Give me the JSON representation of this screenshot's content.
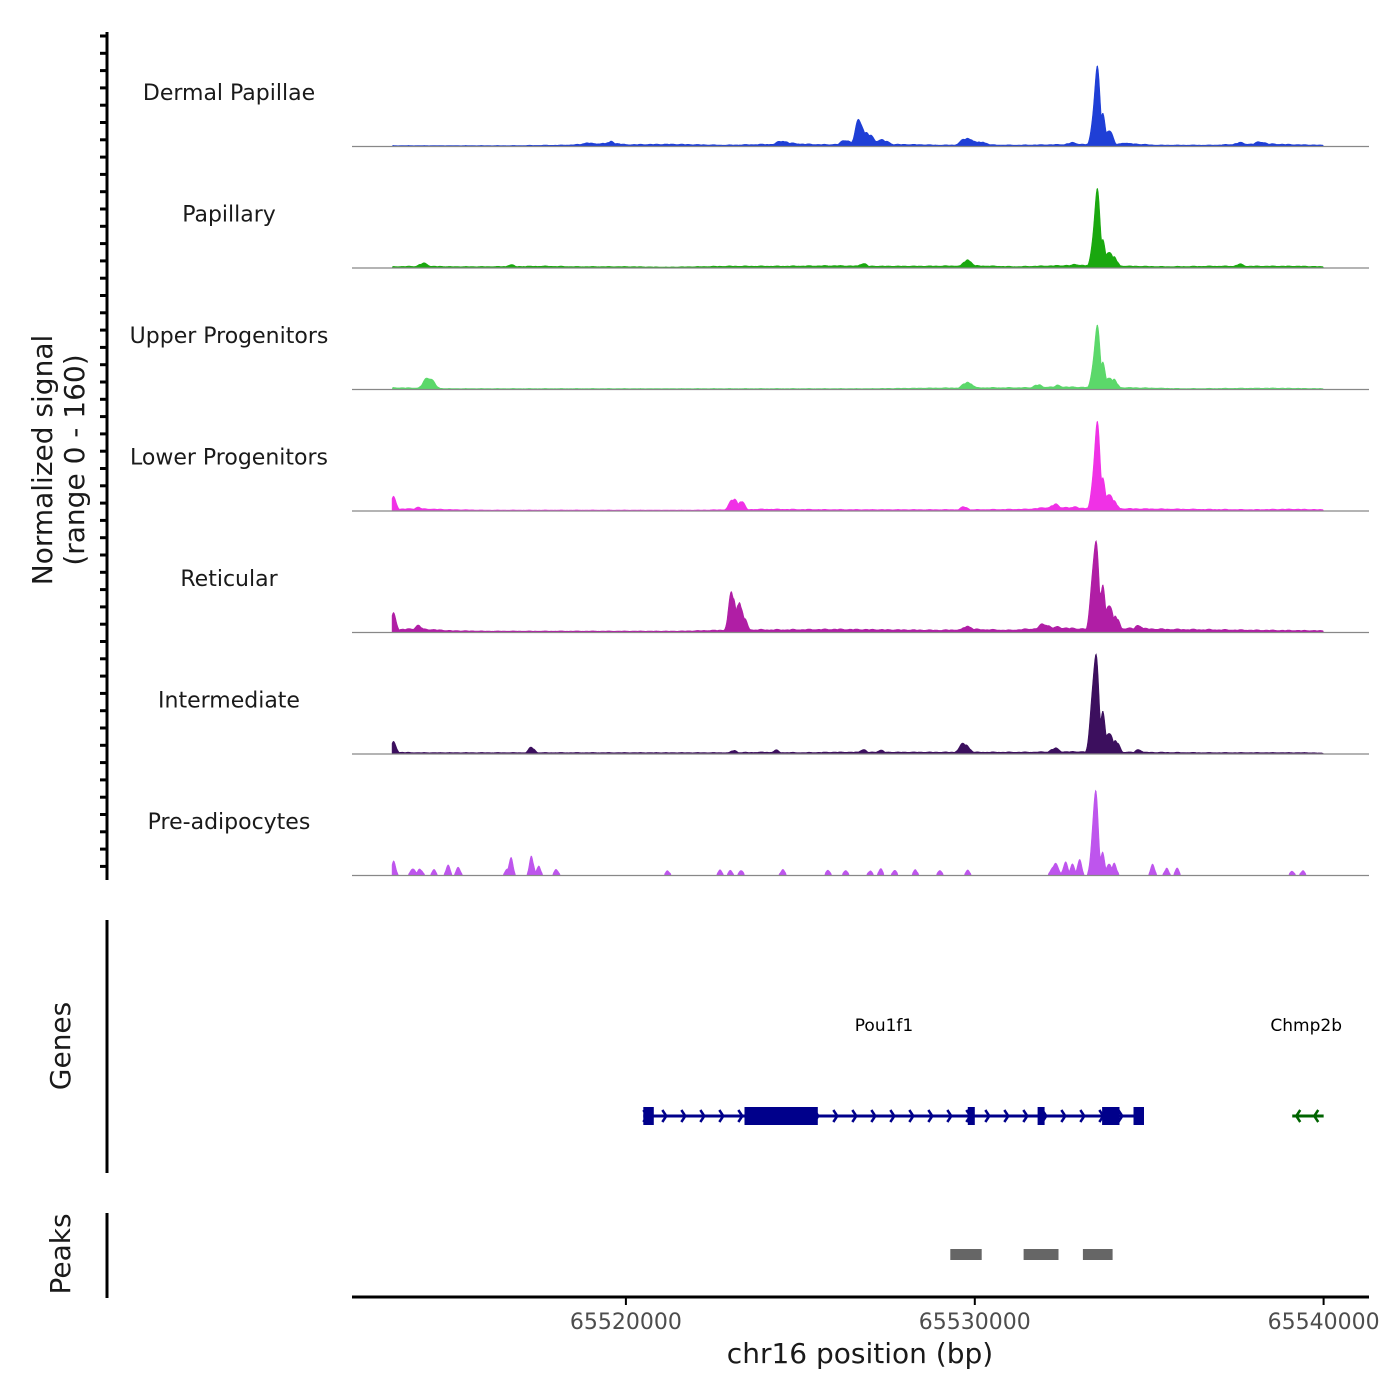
{
  "chart_data": {
    "type": "area",
    "title": "",
    "xlabel": "chr16 position (bp)",
    "ylabel": "Normalized signal",
    "ylabel_sub": "(range 0 - 160)",
    "ylim": [
      0,
      160
    ],
    "xlim": [
      65512150,
      65541300
    ],
    "x_ticks": [
      65520000,
      65530000,
      65540000
    ],
    "x_tick_labels": [
      "65520000",
      "65530000",
      "65540000"
    ],
    "tracks": [
      {
        "name": "Dermal Papillae",
        "color": "#1f3fd6",
        "baseline": [
          [
            65513300,
            2
          ],
          [
            65514100,
            2
          ],
          [
            65515000,
            2
          ],
          [
            65515600,
            2
          ],
          [
            65516700,
            2
          ],
          [
            65518200,
            3
          ],
          [
            65518900,
            5
          ],
          [
            65519600,
            8
          ],
          [
            65520000,
            4
          ],
          [
            65521300,
            5
          ],
          [
            65522800,
            3
          ],
          [
            65523500,
            4
          ],
          [
            65524200,
            5
          ],
          [
            65524500,
            8
          ],
          [
            65525200,
            5
          ],
          [
            65525800,
            4
          ],
          [
            65526300,
            6
          ],
          [
            65527200,
            5
          ],
          [
            65528500,
            4
          ],
          [
            65529000,
            3
          ],
          [
            65530000,
            4
          ],
          [
            65531200,
            3
          ],
          [
            65532200,
            4
          ],
          [
            65534500,
            6
          ],
          [
            65535200,
            3
          ],
          [
            65536800,
            3
          ],
          [
            65537600,
            5
          ],
          [
            65538200,
            6
          ],
          [
            65539200,
            4
          ],
          [
            65540000,
            3
          ]
        ],
        "peaks": [
          [
            65518900,
            200,
            8
          ],
          [
            65519600,
            80,
            12
          ],
          [
            65524500,
            200,
            12
          ],
          [
            65526300,
            150,
            14
          ],
          [
            65526700,
            120,
            58
          ],
          [
            65526900,
            200,
            28
          ],
          [
            65527300,
            250,
            14
          ],
          [
            65529800,
            200,
            18
          ],
          [
            65530200,
            180,
            10
          ],
          [
            65532800,
            200,
            8
          ],
          [
            65533500,
            100,
            160
          ],
          [
            65533650,
            90,
            70
          ],
          [
            65533850,
            100,
            38
          ],
          [
            65534300,
            150,
            8
          ],
          [
            65537600,
            200,
            8
          ],
          [
            65538200,
            200,
            10
          ]
        ]
      },
      {
        "name": "Papillary",
        "color": "#1aa80f",
        "baseline": [
          [
            65513300,
            3
          ],
          [
            65514200,
            4
          ],
          [
            65515000,
            3
          ],
          [
            65516000,
            3
          ],
          [
            65517700,
            4
          ],
          [
            65518500,
            3
          ],
          [
            65520000,
            3
          ],
          [
            65521200,
            2
          ],
          [
            65523000,
            4
          ],
          [
            65524500,
            4
          ],
          [
            65526000,
            5
          ],
          [
            65527000,
            4
          ],
          [
            65528500,
            4
          ],
          [
            65530000,
            5
          ],
          [
            65531200,
            3
          ],
          [
            65532300,
            5
          ],
          [
            65532900,
            6
          ],
          [
            65534500,
            4
          ],
          [
            65535500,
            3
          ],
          [
            65536800,
            4
          ],
          [
            65538200,
            4
          ],
          [
            65539300,
            4
          ],
          [
            65540000,
            3
          ]
        ],
        "peaks": [
          [
            65514200,
            150,
            10
          ],
          [
            65516700,
            120,
            7
          ],
          [
            65526800,
            120,
            10
          ],
          [
            65529800,
            130,
            18
          ],
          [
            65532900,
            150,
            8
          ],
          [
            65533500,
            100,
            158
          ],
          [
            65533650,
            90,
            60
          ],
          [
            65533850,
            100,
            38
          ],
          [
            65534000,
            100,
            22
          ],
          [
            65537600,
            150,
            8
          ]
        ]
      },
      {
        "name": "Upper Progenitors",
        "color": "#5bd86a",
        "baseline": [
          [
            65513300,
            4
          ],
          [
            65514200,
            3
          ],
          [
            65515000,
            2
          ],
          [
            65516000,
            2
          ],
          [
            65518000,
            2
          ],
          [
            65520000,
            2
          ],
          [
            65523000,
            2
          ],
          [
            65525000,
            2
          ],
          [
            65527000,
            2
          ],
          [
            65528500,
            3
          ],
          [
            65530000,
            4
          ],
          [
            65531500,
            4
          ],
          [
            65532300,
            6
          ],
          [
            65533000,
            5
          ],
          [
            65534500,
            4
          ],
          [
            65536000,
            2
          ],
          [
            65538500,
            3
          ],
          [
            65540000,
            2
          ]
        ],
        "peaks": [
          [
            65514350,
            150,
            26
          ],
          [
            65529800,
            150,
            16
          ],
          [
            65531800,
            150,
            10
          ],
          [
            65532400,
            120,
            9
          ],
          [
            65533500,
            100,
            128
          ],
          [
            65533650,
            90,
            58
          ],
          [
            65533850,
            100,
            28
          ],
          [
            65534000,
            100,
            20
          ]
        ]
      },
      {
        "name": "Lower Progenitors",
        "color": "#f031e6",
        "baseline": [
          [
            65513300,
            4
          ],
          [
            65514000,
            5
          ],
          [
            65515000,
            3
          ],
          [
            65516000,
            2
          ],
          [
            65518000,
            2
          ],
          [
            65520000,
            2
          ],
          [
            65522000,
            2
          ],
          [
            65524000,
            4
          ],
          [
            65526000,
            3
          ],
          [
            65528000,
            3
          ],
          [
            65530000,
            3
          ],
          [
            65531500,
            4
          ],
          [
            65532300,
            9
          ],
          [
            65533000,
            6
          ],
          [
            65534500,
            5
          ],
          [
            65536000,
            4
          ],
          [
            65538000,
            3
          ],
          [
            65539000,
            4
          ],
          [
            65540000,
            3
          ]
        ],
        "peaks": [
          [
            65513350,
            80,
            28
          ],
          [
            65514050,
            120,
            8
          ],
          [
            65523100,
            130,
            26
          ],
          [
            65523300,
            100,
            22
          ],
          [
            65529700,
            120,
            9
          ],
          [
            65532300,
            150,
            14
          ],
          [
            65532900,
            100,
            10
          ],
          [
            65533500,
            100,
            178
          ],
          [
            65533650,
            90,
            70
          ],
          [
            65533850,
            100,
            40
          ],
          [
            65534000,
            100,
            20
          ]
        ]
      },
      {
        "name": "Reticular",
        "color": "#b01ea5",
        "baseline": [
          [
            65513300,
            6
          ],
          [
            65514000,
            8
          ],
          [
            65515000,
            4
          ],
          [
            65516000,
            3
          ],
          [
            65518000,
            3
          ],
          [
            65519500,
            3
          ],
          [
            65521500,
            3
          ],
          [
            65523300,
            6
          ],
          [
            65524500,
            6
          ],
          [
            65526000,
            7
          ],
          [
            65527500,
            6
          ],
          [
            65529000,
            5
          ],
          [
            65530000,
            7
          ],
          [
            65531000,
            5
          ],
          [
            65532300,
            11
          ],
          [
            65533000,
            8
          ],
          [
            65534500,
            9
          ],
          [
            65535500,
            7
          ],
          [
            65537000,
            6
          ],
          [
            65538200,
            5
          ],
          [
            65540000,
            4
          ]
        ],
        "peaks": [
          [
            65513350,
            80,
            38
          ],
          [
            65514050,
            120,
            15
          ],
          [
            65523050,
            100,
            85
          ],
          [
            65523250,
            100,
            70
          ],
          [
            65523400,
            100,
            26
          ],
          [
            65529800,
            150,
            14
          ],
          [
            65532000,
            200,
            18
          ],
          [
            65532400,
            150,
            12
          ],
          [
            65533450,
            100,
            200
          ],
          [
            65533650,
            90,
            100
          ],
          [
            65533850,
            100,
            65
          ],
          [
            65534050,
            100,
            34
          ],
          [
            65534700,
            120,
            16
          ]
        ]
      },
      {
        "name": "Intermediate",
        "color": "#3c0f5e",
        "baseline": [
          [
            65513300,
            4
          ],
          [
            65514000,
            3
          ],
          [
            65515000,
            3
          ],
          [
            65516000,
            3
          ],
          [
            65517000,
            3
          ],
          [
            65518000,
            3
          ],
          [
            65519500,
            3
          ],
          [
            65521000,
            3
          ],
          [
            65523000,
            3
          ],
          [
            65524000,
            4
          ],
          [
            65525000,
            3
          ],
          [
            65526000,
            4
          ],
          [
            65527000,
            4
          ],
          [
            65528000,
            4
          ],
          [
            65529500,
            4
          ],
          [
            65530500,
            4
          ],
          [
            65531500,
            4
          ],
          [
            65532300,
            5
          ],
          [
            65533000,
            5
          ],
          [
            65534500,
            4
          ],
          [
            65536500,
            3
          ],
          [
            65538000,
            3
          ],
          [
            65539500,
            3
          ],
          [
            65540000,
            2
          ]
        ],
        "peaks": [
          [
            65513350,
            80,
            24
          ],
          [
            65517300,
            100,
            14
          ],
          [
            65523100,
            100,
            8
          ],
          [
            65524300,
            100,
            8
          ],
          [
            65526800,
            100,
            10
          ],
          [
            65527300,
            120,
            8
          ],
          [
            65529700,
            150,
            22
          ],
          [
            65532300,
            150,
            12
          ],
          [
            65533450,
            100,
            218
          ],
          [
            65533650,
            90,
            90
          ],
          [
            65533850,
            100,
            50
          ],
          [
            65534050,
            100,
            28
          ],
          [
            65534700,
            100,
            10
          ]
        ]
      },
      {
        "name": "Pre-adipocytes",
        "color": "#be55ed",
        "baseline": [
          [
            65513300,
            0
          ],
          [
            65540000,
            0
          ]
        ],
        "peaks": [
          [
            65513350,
            60,
            28
          ],
          [
            65513900,
            70,
            16
          ],
          [
            65514100,
            70,
            14
          ],
          [
            65514500,
            60,
            12
          ],
          [
            65514900,
            60,
            22
          ],
          [
            65515200,
            60,
            18
          ],
          [
            65516700,
            60,
            38
          ],
          [
            65516600,
            60,
            16
          ],
          [
            65517300,
            60,
            40
          ],
          [
            65517500,
            60,
            22
          ],
          [
            65518000,
            60,
            14
          ],
          [
            65521200,
            60,
            10
          ],
          [
            65522700,
            60,
            12
          ],
          [
            65523000,
            60,
            10
          ],
          [
            65523300,
            60,
            12
          ],
          [
            65524500,
            60,
            14
          ],
          [
            65525800,
            60,
            12
          ],
          [
            65526300,
            60,
            12
          ],
          [
            65527000,
            60,
            10
          ],
          [
            65527300,
            60,
            14
          ],
          [
            65527700,
            60,
            12
          ],
          [
            65528300,
            60,
            12
          ],
          [
            65529000,
            60,
            12
          ],
          [
            65529800,
            60,
            12
          ],
          [
            65532300,
            100,
            24
          ],
          [
            65532600,
            70,
            28
          ],
          [
            65532800,
            70,
            22
          ],
          [
            65533000,
            60,
            36
          ],
          [
            65533450,
            80,
            188
          ],
          [
            65533650,
            70,
            50
          ],
          [
            65533850,
            70,
            28
          ],
          [
            65534000,
            70,
            24
          ],
          [
            65535100,
            60,
            24
          ],
          [
            65535500,
            60,
            16
          ],
          [
            65535800,
            60,
            14
          ],
          [
            65539100,
            60,
            10
          ],
          [
            65539400,
            60,
            10
          ]
        ]
      }
    ],
    "genes": [
      {
        "name": "Pou1f1",
        "strand": "+",
        "color": "#00008b",
        "start": 65520500,
        "end": 65534850,
        "exons": [
          [
            65520500,
            65520800
          ],
          [
            65523400,
            65525500
          ],
          [
            65529800,
            65530000
          ],
          [
            65531800,
            65532000
          ],
          [
            65533650,
            65534150
          ],
          [
            65534550,
            65534850
          ]
        ]
      },
      {
        "name": "Chmp2b",
        "strand": "-",
        "color": "#006400",
        "start": 65539100,
        "end": 65540000,
        "exons": []
      }
    ],
    "peaks_track": {
      "name": "Peaks",
      "color": "#666666",
      "regions": [
        [
          65529300,
          65530200
        ],
        [
          65531400,
          65532400
        ],
        [
          65533100,
          65533950
        ]
      ]
    },
    "panel_labels": {
      "genes": "Genes",
      "peaks": "Peaks"
    }
  }
}
